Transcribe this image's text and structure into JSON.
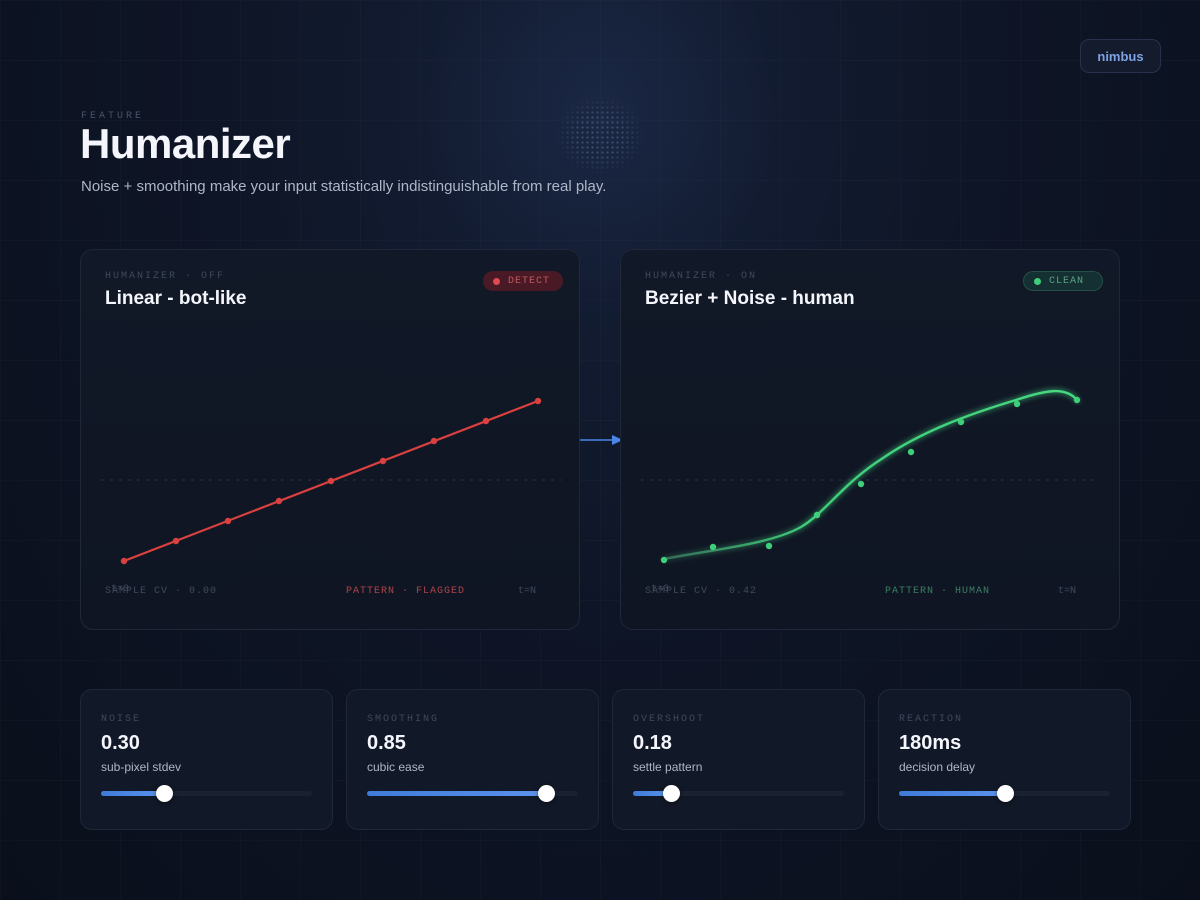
{
  "brand": "nimbus",
  "header": {
    "eyebrow": "FEATURE",
    "title": "Humanizer",
    "subtitle": "Noise + smoothing make your input statistically indistinguishable from real play."
  },
  "panels": [
    {
      "eyebrow": "HUMANIZER · OFF",
      "title": "Linear - bot-like",
      "badge": "DETECT",
      "cv": "SAMPLE CV · 0.00",
      "pattern": "PATTERN · FLAGGED",
      "axis_start": "t=0",
      "axis_end": "t=N",
      "curve_color": "#d9403f"
    },
    {
      "eyebrow": "HUMANIZER · ON",
      "title": "Bezier + Noise - human",
      "badge": "CLEAN",
      "cv": "SAMPLE CV · 0.42",
      "pattern": "PATTERN · HUMAN",
      "axis_start": "t=0",
      "axis_end": "t=N",
      "curve_color": "#3fcf7a"
    }
  ],
  "controls": [
    {
      "label": "NOISE",
      "value": "0.30",
      "caption": "sub-pixel stdev",
      "level": 0.3
    },
    {
      "label": "SMOOTHING",
      "value": "0.85",
      "caption": "cubic ease",
      "level": 0.85
    },
    {
      "label": "OVERSHOOT",
      "value": "0.18",
      "caption": "settle pattern",
      "level": 0.18
    },
    {
      "label": "REACTION",
      "value": "180ms",
      "caption": "decision delay",
      "level": 0.5
    }
  ],
  "colors": {
    "accent": "#4a86e8",
    "detect": "#e04a4f",
    "clean": "#3fcf7a"
  },
  "icons": {
    "flow_arrow": "arrow-right-icon"
  }
}
